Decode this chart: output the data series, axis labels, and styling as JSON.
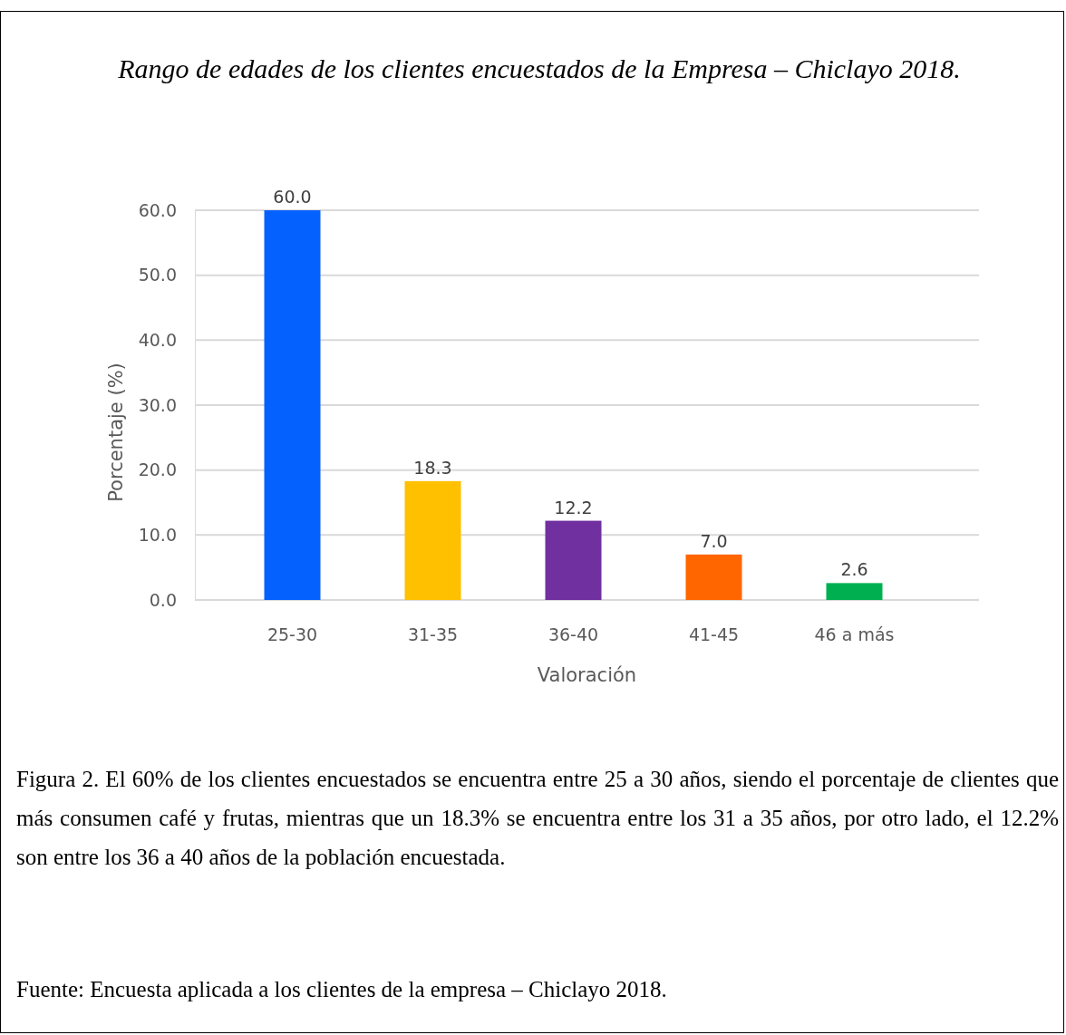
{
  "chart_data": {
    "type": "bar",
    "title": "Rango de edades de los clientes encuestados de la Empresa – Chiclayo 2018.",
    "categories": [
      "25-30",
      "31-35",
      "36-40",
      "41-45",
      "46 a más"
    ],
    "values": [
      60.0,
      18.3,
      12.2,
      7.0,
      2.6
    ],
    "colors": [
      "#0561fe",
      "#ffc000",
      "#7030a0",
      "#ff6600",
      "#00b050"
    ],
    "ylim": [
      0,
      60
    ],
    "yticks": [
      {
        "value": 0,
        "label": "0.0"
      },
      {
        "value": 10,
        "label": "10.0"
      },
      {
        "value": 20,
        "label": "20.0"
      },
      {
        "value": 30,
        "label": "30.0"
      },
      {
        "value": 40,
        "label": "40.0"
      },
      {
        "value": 50,
        "label": "50.0"
      },
      {
        "value": 60,
        "label": "60.0"
      }
    ],
    "value_labels": [
      "60.0",
      "18.3",
      "12.2",
      "7.0",
      "2.6"
    ],
    "xlabel": "Valoración",
    "ylabel": "Porcentaje (%)",
    "grid": true,
    "annotations": [
      "Figura 2. El 60% de los clientes encuestados se encuentra entre 25 a 30 años, siendo el porcentaje de clientes que más consumen café y frutas, mientras que un 18.3% se encuentra entre los 31 a 35 años, por otro lado, el 12.2% son entre los 36 a 40 años de la población encuestada.",
      "Fuente: Encuesta aplicada a los clientes de la empresa – Chiclayo 2018."
    ]
  }
}
